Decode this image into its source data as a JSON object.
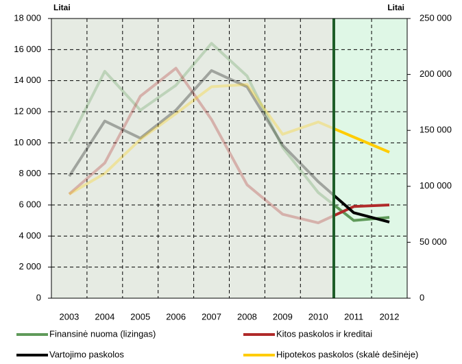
{
  "chart_data": {
    "type": "line",
    "y_label": "Litai",
    "y2_label": "Litai",
    "categories": [
      "2003",
      "2004",
      "2005",
      "2006",
      "2007",
      "2008",
      "2009",
      "2010",
      "2011",
      "2012"
    ],
    "ylim": [
      0,
      18000
    ],
    "yticks": [
      0,
      {
        "value": 2000,
        "label": "2 000"
      },
      {
        "value": 4000,
        "label": "4 000"
      },
      {
        "value": 6000,
        "label": "6 000"
      },
      {
        "value": 8000,
        "label": "8 000"
      },
      {
        "value": 10000,
        "label": "10 000"
      },
      {
        "value": 12000,
        "label": "12 000"
      },
      {
        "value": 14000,
        "label": "14 000"
      },
      {
        "value": 16000,
        "label": "16 000"
      },
      {
        "value": 18000,
        "label": "18 000"
      }
    ],
    "y2lim": [
      0,
      250000
    ],
    "y2ticks": [
      0,
      {
        "value": 50000,
        "label": "50 000"
      },
      {
        "value": 100000,
        "label": "100 000"
      },
      {
        "value": 150000,
        "label": "150 000"
      },
      {
        "value": 200000,
        "label": "200 000"
      },
      {
        "value": 250000,
        "label": "250 000"
      }
    ],
    "grid": true,
    "series": [
      {
        "name": "Finansinė nuoma (lizingas)",
        "color": "#5f9a5a",
        "values": [
          10100,
          14600,
          12100,
          13700,
          16400,
          14300,
          9700,
          6800,
          5000,
          5200
        ]
      },
      {
        "name": "Kitos paskolos ir kreditai",
        "color": "#b02a2a",
        "values": [
          6700,
          8700,
          13000,
          14800,
          11500,
          7300,
          5400,
          4850,
          5900,
          6000
        ]
      },
      {
        "name": "Vartojimo paskolos",
        "color": "#000000",
        "values": [
          7850,
          11400,
          10300,
          12100,
          14650,
          13600,
          9850,
          7500,
          5500,
          4900
        ]
      },
      {
        "name": "Hipotekos paskolos (skalė dešinėje)",
        "color": "#ffcc00",
        "axis": "y2",
        "values": [
          93000,
          111500,
          142000,
          165000,
          189000,
          191000,
          146500,
          157500,
          144000,
          130500
        ]
      }
    ]
  }
}
